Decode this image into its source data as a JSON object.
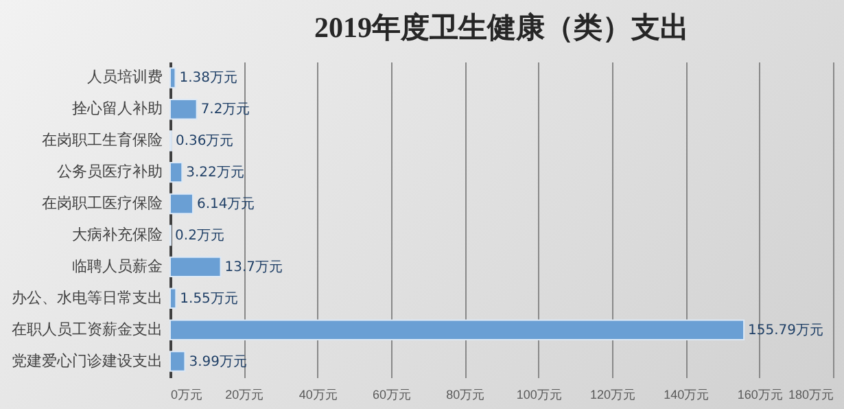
{
  "chart_data": {
    "type": "bar",
    "orientation": "horizontal",
    "title": "2019年度卫生健康（类）支出",
    "categories": [
      "人员培训费",
      "拴心留人补助",
      "在岗职工生育保险",
      "公务员医疗补助",
      "在岗职工医疗保险",
      "大病补充保险",
      "临聘人员薪金",
      "办公、水电等日常支出",
      "在职人员工资薪金支出",
      "党建爱心门诊建设支出"
    ],
    "values": [
      1.38,
      7.2,
      0.36,
      3.22,
      6.14,
      0.2,
      13.7,
      1.55,
      155.79,
      3.99
    ],
    "value_labels": [
      "1.38万元",
      "7.2万元",
      "0.36万元",
      "3.22万元",
      "6.14万元",
      "0.2万元",
      "13.7万元",
      "1.55万元",
      "155.79万元",
      "3.99万元"
    ],
    "color": "#6a9fd4",
    "xlim": [
      0,
      180
    ],
    "xticks": [
      {
        "value": 0,
        "label": "0万元"
      },
      {
        "value": 20,
        "label": "20万元"
      },
      {
        "value": 40,
        "label": "40万元"
      },
      {
        "value": 60,
        "label": "60万元"
      },
      {
        "value": 80,
        "label": "80万元"
      },
      {
        "value": 100,
        "label": "100万元"
      },
      {
        "value": 120,
        "label": "120万元"
      },
      {
        "value": 140,
        "label": "140万元"
      },
      {
        "value": 160,
        "label": "160万元"
      },
      {
        "value": 180,
        "label": "180万元"
      }
    ],
    "grid": "x"
  }
}
